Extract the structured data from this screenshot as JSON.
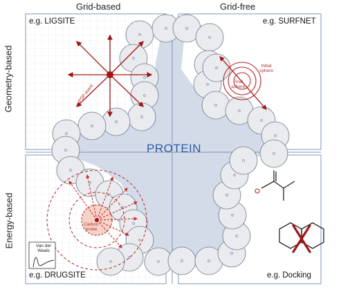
{
  "columns": {
    "left": "Grid-based",
    "right": "Grid-free"
  },
  "rows": {
    "top": "Geometry-based",
    "bottom": "Energy-based"
  },
  "quadrants": {
    "top_left": "e.g. LIGSITE",
    "top_right": "e.g. SURFNET",
    "bottom_left": "e.g. DRUGSITE",
    "bottom_right": "e.g. Docking"
  },
  "center_label": "PROTEIN",
  "annotations": {
    "psp_event": "PSP event",
    "initial_sphere": [
      "Initial",
      "sphere"
    ],
    "final_sphere": [
      "Final",
      "sphere"
    ],
    "carbon_probe": [
      "Carbon",
      "probe"
    ],
    "van_der_waals": [
      "Van der",
      "Waals"
    ]
  },
  "colors": {
    "protein_fill": "#d3dbe8",
    "circle_fill": "#e9ebee",
    "arrow_red": "#a01515",
    "grid_line": "#dde3ea",
    "frame": "#7f96b4"
  }
}
